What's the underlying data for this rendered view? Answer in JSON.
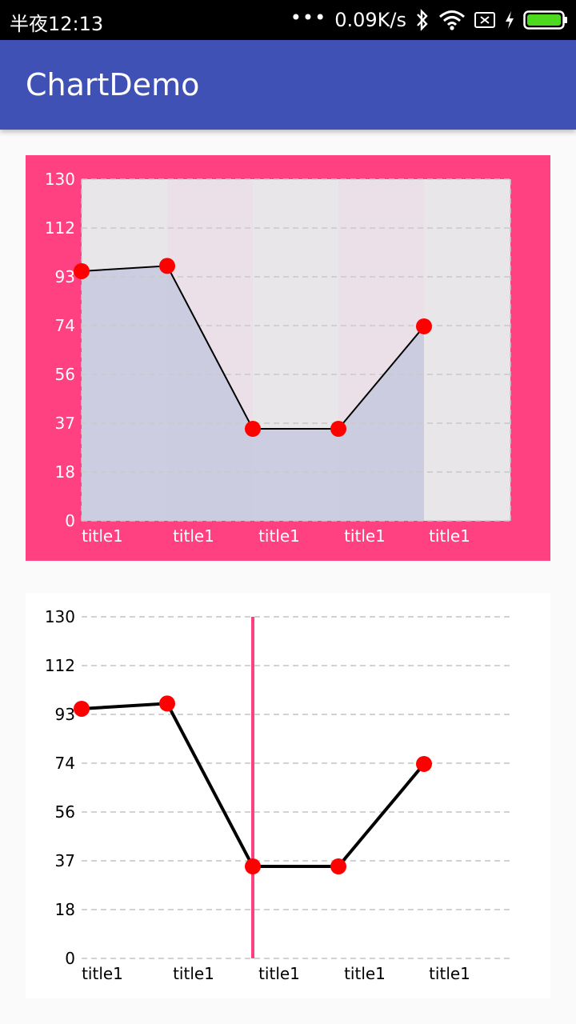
{
  "status_bar": {
    "time": "半夜12:13",
    "dots": "•••",
    "speed": "0.09K/s",
    "icons": [
      "bluetooth-icon",
      "wifi-icon",
      "sim-card-icon",
      "charging-icon",
      "battery-icon"
    ],
    "battery_color": "#4cd91e"
  },
  "app_bar": {
    "title": "ChartDemo",
    "color": "#3f51b5"
  },
  "chart_data": [
    {
      "type": "area",
      "categories": [
        "title1",
        "title1",
        "title1",
        "title1",
        "title1"
      ],
      "series": [
        {
          "values": [
            95,
            97,
            35,
            35,
            74
          ]
        }
      ],
      "y_ticks": [
        "0",
        "18",
        "37",
        "56",
        "74",
        "93",
        "112",
        "130"
      ],
      "ylim": [
        0,
        130
      ],
      "grid": true,
      "background_color": "#ff4081",
      "plot_color": "#e8e6e9",
      "fill_color": "#c7c8df",
      "point_color": "#ff0000",
      "line_color": "#000000",
      "label_color": "#ffffff"
    },
    {
      "type": "line",
      "categories": [
        "title1",
        "title1",
        "title1",
        "title1",
        "title1"
      ],
      "series": [
        {
          "values": [
            95,
            97,
            35,
            35,
            74
          ]
        }
      ],
      "y_ticks": [
        "0",
        "18",
        "37",
        "56",
        "74",
        "93",
        "112",
        "130"
      ],
      "ylim": [
        0,
        130
      ],
      "grid": true,
      "highlight_index": 2,
      "highlight_color": "#ff4081",
      "background_color": "#ffffff",
      "point_color": "#ff0000",
      "line_color": "#000000",
      "label_color": "#000000"
    }
  ]
}
